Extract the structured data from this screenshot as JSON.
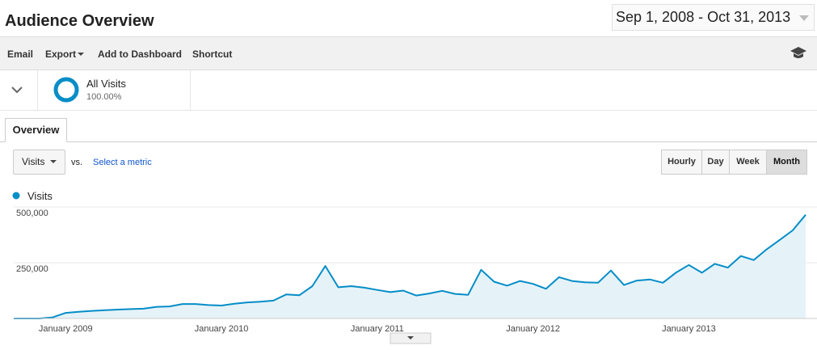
{
  "header": {
    "title": "Audience Overview",
    "date_range": "Sep 1, 2008 - Oct 31, 2013"
  },
  "toolbar": {
    "items": [
      "Email",
      "Export",
      "Add to Dashboard",
      "Shortcut"
    ]
  },
  "segment": {
    "name": "All Visits",
    "percent": "100.00%"
  },
  "tabs": [
    "Overview"
  ],
  "controls": {
    "metric": "Visits",
    "vs": "vs.",
    "select_metric": "Select a metric",
    "granularity": [
      "Hourly",
      "Day",
      "Week",
      "Month"
    ],
    "active": "Month"
  },
  "chart_data": {
    "type": "line",
    "categories": [
      null,
      null,
      null,
      null,
      "January 2009",
      null,
      null,
      null,
      null,
      null,
      null,
      null,
      null,
      null,
      null,
      null,
      "January 2010",
      null,
      null,
      null,
      null,
      null,
      null,
      null,
      null,
      null,
      null,
      null,
      "January 2011",
      null,
      null,
      null,
      null,
      null,
      null,
      null,
      null,
      null,
      null,
      null,
      "January 2012",
      null,
      null,
      null,
      null,
      null,
      null,
      null,
      null,
      null,
      null,
      null,
      "January 2013",
      null,
      null,
      null,
      null,
      null,
      null,
      null,
      null,
      null
    ],
    "series": [
      {
        "name": "Visits",
        "color": "#058dc7",
        "values": [
          0,
          0,
          0,
          5000,
          25000,
          30000,
          34000,
          37000,
          40000,
          42000,
          44000,
          52000,
          54000,
          65000,
          65000,
          60000,
          58000,
          66000,
          72000,
          75000,
          80000,
          108000,
          104000,
          145000,
          235000,
          140000,
          145000,
          138000,
          128000,
          118000,
          125000,
          103000,
          112000,
          124000,
          110000,
          106000,
          218000,
          165000,
          147000,
          168000,
          155000,
          133000,
          185000,
          168000,
          162000,
          160000,
          215000,
          150000,
          170000,
          175000,
          160000,
          205000,
          240000,
          205000,
          245000,
          228000,
          280000,
          262000,
          310000,
          352000,
          395000,
          465000
        ]
      }
    ],
    "ylim": [
      0,
      500000
    ],
    "yticks": [
      {
        "value": 250000,
        "label": "250,000"
      },
      {
        "value": 500000,
        "label": "500,000"
      }
    ],
    "grid": true,
    "fill": true
  }
}
